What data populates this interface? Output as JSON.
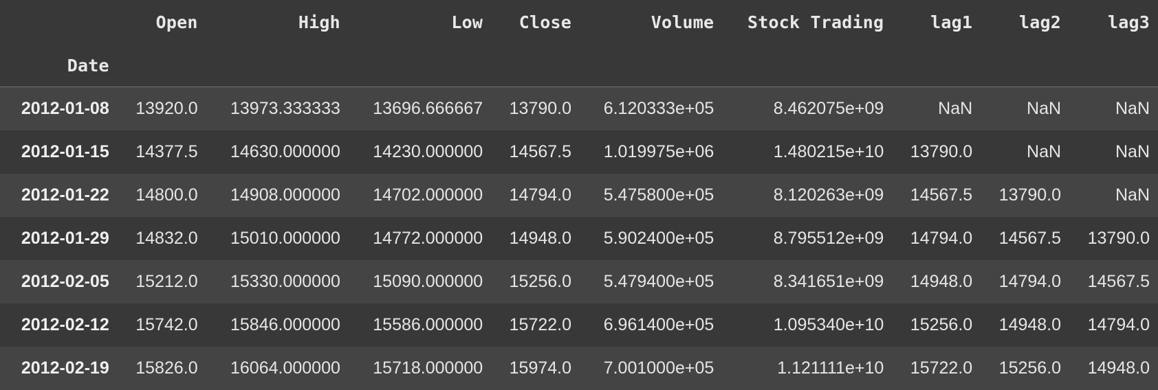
{
  "table": {
    "columns": [
      "Open",
      "High",
      "Low",
      "Close",
      "Volume",
      "Stock Trading",
      "lag1",
      "lag2",
      "lag3"
    ],
    "index_name": "Date",
    "rows": [
      {
        "date": "2012-01-08",
        "cells": [
          "13920.0",
          "13973.333333",
          "13696.666667",
          "13790.0",
          "6.120333e+05",
          "8.462075e+09",
          "NaN",
          "NaN",
          "NaN"
        ]
      },
      {
        "date": "2012-01-15",
        "cells": [
          "14377.5",
          "14630.000000",
          "14230.000000",
          "14567.5",
          "1.019975e+06",
          "1.480215e+10",
          "13790.0",
          "NaN",
          "NaN"
        ]
      },
      {
        "date": "2012-01-22",
        "cells": [
          "14800.0",
          "14908.000000",
          "14702.000000",
          "14794.0",
          "5.475800e+05",
          "8.120263e+09",
          "14567.5",
          "13790.0",
          "NaN"
        ]
      },
      {
        "date": "2012-01-29",
        "cells": [
          "14832.0",
          "15010.000000",
          "14772.000000",
          "14948.0",
          "5.902400e+05",
          "8.795512e+09",
          "14794.0",
          "14567.5",
          "13790.0"
        ]
      },
      {
        "date": "2012-02-05",
        "cells": [
          "15212.0",
          "15330.000000",
          "15090.000000",
          "15256.0",
          "5.479400e+05",
          "8.341651e+09",
          "14948.0",
          "14794.0",
          "14567.5"
        ]
      },
      {
        "date": "2012-02-12",
        "cells": [
          "15742.0",
          "15846.000000",
          "15586.000000",
          "15722.0",
          "6.961400e+05",
          "1.095340e+10",
          "15256.0",
          "14948.0",
          "14794.0"
        ]
      },
      {
        "date": "2012-02-19",
        "cells": [
          "15826.0",
          "16064.000000",
          "15718.000000",
          "15974.0",
          "7.001000e+05",
          "1.121111e+10",
          "15722.0",
          "15256.0",
          "14948.0"
        ]
      }
    ]
  },
  "colors": {
    "background": "#383838",
    "row_alt": "#444444",
    "text": "#e6e6e6"
  }
}
